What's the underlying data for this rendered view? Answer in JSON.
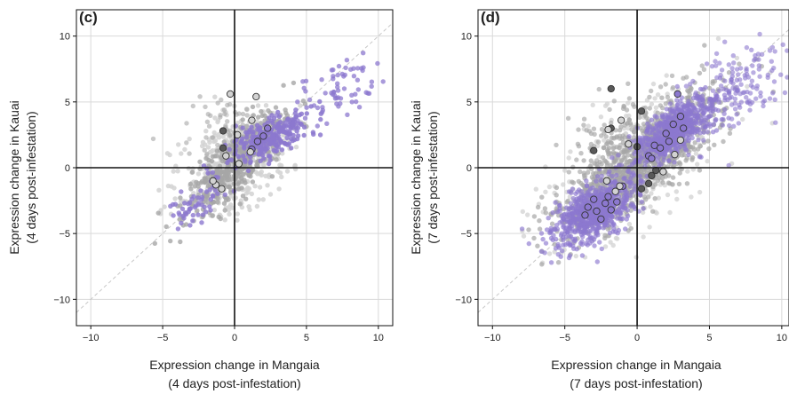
{
  "colors": {
    "light_gray": "#d2d2d2",
    "mid_gray": "#a6a6a6",
    "dark_gray": "#595959",
    "purple": "#8c78cf",
    "purple_dark": "#6f56b7",
    "grid": "#d9d9d9",
    "axis_line": "#111111",
    "diagonal": "#c8c8c8"
  },
  "chart_data": [
    {
      "type": "scatter",
      "panel_label": "(c)",
      "xlabel_line1": "Expression change in Mangaia",
      "xlabel_line2": "(4 days post-infestation)",
      "ylabel_line1": "Expression change in Kauai",
      "ylabel_line2": "(4 days post-infestation)",
      "xlim": [
        -11,
        11
      ],
      "ylim": [
        -12,
        12
      ],
      "xticks": [
        -10,
        -5,
        0,
        5,
        10
      ],
      "yticks": [
        -10,
        -5,
        0,
        5,
        10
      ],
      "xtick_labels": [
        "−10",
        "−5",
        "0",
        "5",
        "10"
      ],
      "ytick_labels": [
        "−10",
        "−5",
        "0",
        "5",
        "10"
      ],
      "grid": true,
      "reference_lines": [
        "x=0",
        "y=0",
        "y=x (dashed)"
      ],
      "clouds": [
        {
          "category": "light_gray",
          "n": 480,
          "center": [
            0.0,
            0.2
          ],
          "spread": [
            1.9,
            2.0
          ],
          "corr": 0.45,
          "alpha": 0.85
        },
        {
          "category": "mid_gray",
          "n": 430,
          "center": [
            0.0,
            0.3
          ],
          "spread": [
            1.7,
            1.9
          ],
          "corr": 0.8,
          "alpha": 0.8
        },
        {
          "category": "mid_gray",
          "n": 40,
          "center": [
            -1.0,
            3.5
          ],
          "spread": [
            1.5,
            1.2
          ],
          "corr": 0.2,
          "alpha": 0.6
        },
        {
          "category": "purple",
          "n": 260,
          "center": [
            2.4,
            2.3
          ],
          "spread": [
            1.4,
            1.0
          ],
          "corr": 0.7,
          "alpha": 0.85
        },
        {
          "category": "purple",
          "n": 70,
          "center": [
            7.0,
            6.0
          ],
          "spread": [
            1.6,
            1.3
          ],
          "corr": 0.5,
          "alpha": 0.75
        },
        {
          "category": "purple",
          "n": 60,
          "center": [
            -2.5,
            -2.5
          ],
          "spread": [
            1.1,
            1.1
          ],
          "corr": 0.7,
          "alpha": 0.8
        }
      ],
      "highlighted_points": [
        {
          "x": 2.3,
          "y": 3.0,
          "category": "purple"
        },
        {
          "x": 1.2,
          "y": 1.4,
          "category": "purple"
        },
        {
          "x": 1.6,
          "y": 2.0,
          "category": "purple"
        },
        {
          "x": 2.0,
          "y": 2.4,
          "category": "purple"
        },
        {
          "x": -0.8,
          "y": 1.5,
          "category": "dark_gray"
        },
        {
          "x": -0.8,
          "y": 2.8,
          "category": "dark_gray"
        },
        {
          "x": -0.6,
          "y": 0.9,
          "category": "light_gray"
        },
        {
          "x": 0.2,
          "y": 2.5,
          "category": "light_gray"
        },
        {
          "x": 1.5,
          "y": 5.4,
          "category": "light_gray"
        },
        {
          "x": -0.3,
          "y": 5.6,
          "category": "light_gray"
        },
        {
          "x": 1.2,
          "y": 3.6,
          "category": "light_gray"
        },
        {
          "x": 0.3,
          "y": 0.3,
          "category": "light_gray"
        },
        {
          "x": -1.3,
          "y": -1.3,
          "category": "light_gray"
        },
        {
          "x": -0.9,
          "y": -1.6,
          "category": "light_gray"
        },
        {
          "x": -1.5,
          "y": -1.0,
          "category": "light_gray"
        },
        {
          "x": 1.1,
          "y": 1.2,
          "category": "light_gray"
        }
      ]
    },
    {
      "type": "scatter",
      "panel_label": "(d)",
      "xlabel_line1": "Expression change in Mangaia",
      "xlabel_line2": "(7 days post-infestation)",
      "ylabel_line1": "Expression change in Kauai",
      "ylabel_line2": "(7 days post-infestation)",
      "xlim": [
        -11,
        10.5
      ],
      "ylim": [
        -12,
        12
      ],
      "xticks": [
        -10,
        -5,
        0,
        5,
        10
      ],
      "yticks": [
        -10,
        -5,
        0,
        5,
        10
      ],
      "xtick_labels": [
        "−10",
        "−5",
        "0",
        "5",
        "10"
      ],
      "ytick_labels": [
        "−10",
        "−5",
        "0",
        "5",
        "10"
      ],
      "grid": true,
      "reference_lines": [
        "x=0",
        "y=0",
        "y=x (dashed)"
      ],
      "clouds": [
        {
          "category": "light_gray",
          "n": 320,
          "center": [
            -0.5,
            0.0
          ],
          "spread": [
            3.2,
            3.0
          ],
          "corr": 0.6,
          "alpha": 0.75
        },
        {
          "category": "mid_gray",
          "n": 900,
          "center": [
            0.0,
            0.0
          ],
          "spread": [
            2.8,
            2.6
          ],
          "corr": 0.82,
          "alpha": 0.7
        },
        {
          "category": "mid_gray",
          "n": 200,
          "center": [
            0.5,
            3.2
          ],
          "spread": [
            2.5,
            1.8
          ],
          "corr": 0.6,
          "alpha": 0.65
        },
        {
          "category": "purple",
          "n": 700,
          "center": [
            -3.0,
            -3.3
          ],
          "spread": [
            1.4,
            1.2
          ],
          "corr": 0.55,
          "alpha": 0.65
        },
        {
          "category": "purple",
          "n": 600,
          "center": [
            2.6,
            2.8
          ],
          "spread": [
            1.4,
            1.3
          ],
          "corr": 0.7,
          "alpha": 0.65
        },
        {
          "category": "purple",
          "n": 150,
          "center": [
            7.0,
            6.0
          ],
          "spread": [
            2.0,
            1.8
          ],
          "corr": 0.5,
          "alpha": 0.6
        }
      ],
      "highlighted_points": [
        {
          "x": -3.4,
          "y": -3.0,
          "category": "purple"
        },
        {
          "x": -2.8,
          "y": -3.3,
          "category": "purple"
        },
        {
          "x": -2.2,
          "y": -2.7,
          "category": "purple"
        },
        {
          "x": -3.0,
          "y": -2.4,
          "category": "purple"
        },
        {
          "x": -2.5,
          "y": -3.9,
          "category": "purple"
        },
        {
          "x": -1.8,
          "y": -3.2,
          "category": "purple"
        },
        {
          "x": -3.6,
          "y": -3.6,
          "category": "purple"
        },
        {
          "x": -2.0,
          "y": -2.2,
          "category": "purple"
        },
        {
          "x": -1.4,
          "y": -2.6,
          "category": "purple"
        },
        {
          "x": -1.0,
          "y": -1.4,
          "category": "purple"
        },
        {
          "x": 2.5,
          "y": 3.3,
          "category": "purple"
        },
        {
          "x": 3.0,
          "y": 3.9,
          "category": "purple"
        },
        {
          "x": 2.0,
          "y": 2.6,
          "category": "purple"
        },
        {
          "x": 1.2,
          "y": 1.7,
          "category": "purple"
        },
        {
          "x": 0.8,
          "y": 0.9,
          "category": "purple"
        },
        {
          "x": 2.8,
          "y": 5.6,
          "category": "purple"
        },
        {
          "x": 1.6,
          "y": 1.5,
          "category": "purple"
        },
        {
          "x": 3.2,
          "y": 3.0,
          "category": "purple"
        },
        {
          "x": 2.2,
          "y": 2.0,
          "category": "purple"
        },
        {
          "x": 1.0,
          "y": 0.7,
          "category": "purple"
        },
        {
          "x": -1.8,
          "y": 6.0,
          "category": "dark_gray"
        },
        {
          "x": 0.3,
          "y": 4.3,
          "category": "dark_gray"
        },
        {
          "x": -1.8,
          "y": 3.0,
          "category": "dark_gray"
        },
        {
          "x": -3.0,
          "y": 1.3,
          "category": "dark_gray"
        },
        {
          "x": 0.0,
          "y": 1.6,
          "category": "dark_gray"
        },
        {
          "x": 1.0,
          "y": -0.6,
          "category": "dark_gray"
        },
        {
          "x": 0.3,
          "y": -1.6,
          "category": "dark_gray"
        },
        {
          "x": 1.3,
          "y": -0.2,
          "category": "dark_gray"
        },
        {
          "x": 0.8,
          "y": -1.2,
          "category": "dark_gray"
        },
        {
          "x": -1.1,
          "y": 3.6,
          "category": "light_gray"
        },
        {
          "x": -0.6,
          "y": 1.8,
          "category": "light_gray"
        },
        {
          "x": -2.0,
          "y": 2.9,
          "category": "light_gray"
        },
        {
          "x": 3.0,
          "y": 2.1,
          "category": "light_gray"
        },
        {
          "x": 2.6,
          "y": 1.0,
          "category": "light_gray"
        },
        {
          "x": -2.1,
          "y": -1.0,
          "category": "light_gray"
        },
        {
          "x": -1.2,
          "y": -1.4,
          "category": "light_gray"
        },
        {
          "x": -1.5,
          "y": -1.8,
          "category": "light_gray"
        },
        {
          "x": 1.8,
          "y": -0.3,
          "category": "light_gray"
        }
      ]
    }
  ]
}
